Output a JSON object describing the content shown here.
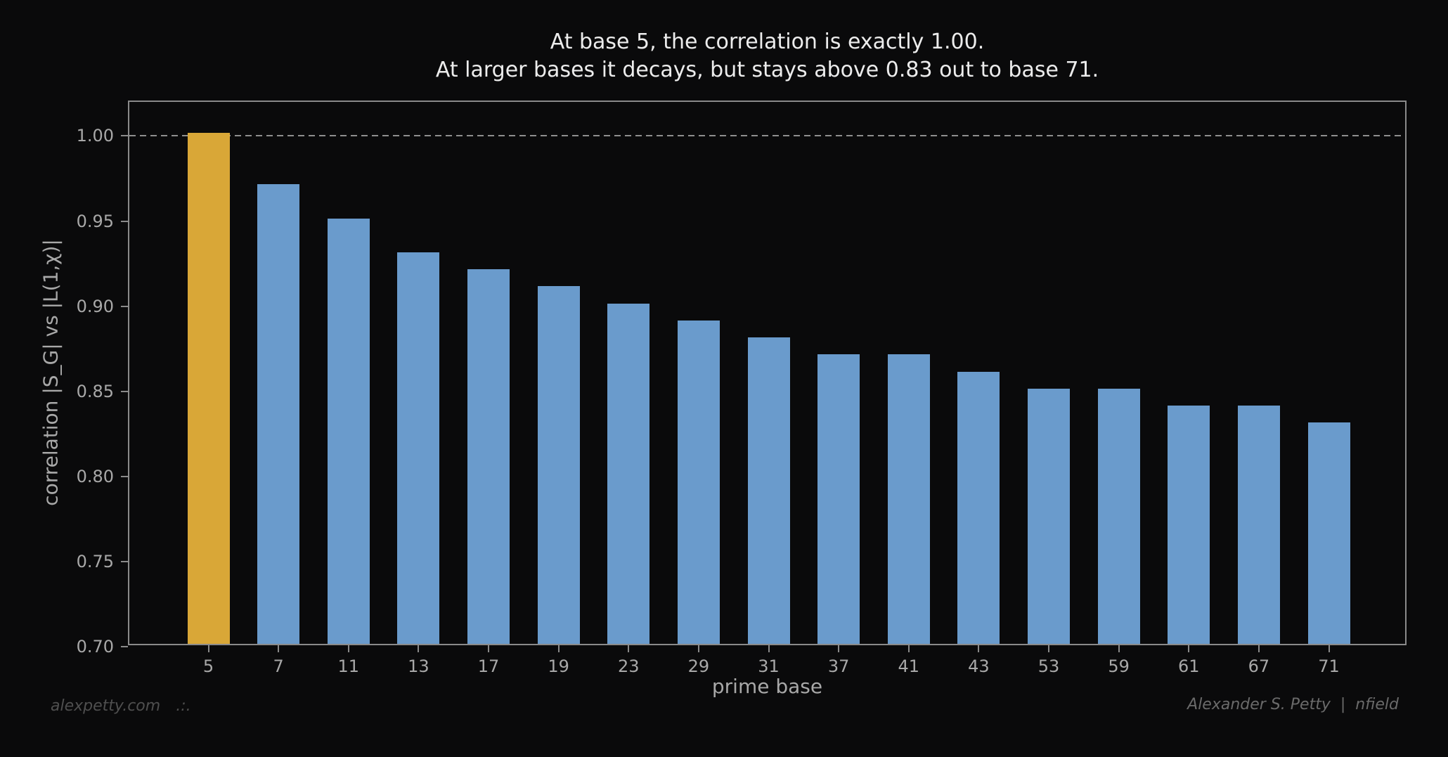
{
  "title": {
    "line1": "At base 5, the correlation is exactly 1.00.",
    "line2": "At larger bases it decays, but stays above 0.83 out to base 71."
  },
  "footer": {
    "left_brand": "alexpetty.com",
    "left_glyph": ".:.",
    "right_credit": "Alexander S. Petty  |  nfield"
  },
  "colors": {
    "background": "#0a0a0b",
    "title_text": "#ececec",
    "tick_text": "#a8a8a8",
    "spine": "#8a8a8a",
    "gridline": "#8f8f8f",
    "footer_left_text": "#4f4f4f",
    "footer_right_text": "#6a6a6a"
  },
  "chart_data": {
    "type": "bar",
    "title": "At base 5, the correlation is exactly 1.00.\nAt larger bases it decays, but stays above 0.83 out to base 71.",
    "xlabel": "prime base",
    "ylabel": "correlation |S_G| vs |L(1,χ)|",
    "categories": [
      "5",
      "7",
      "11",
      "13",
      "17",
      "19",
      "23",
      "29",
      "31",
      "37",
      "41",
      "43",
      "53",
      "59",
      "61",
      "67",
      "71"
    ],
    "values": [
      1.0,
      0.97,
      0.95,
      0.93,
      0.92,
      0.91,
      0.9,
      0.89,
      0.88,
      0.87,
      0.87,
      0.86,
      0.85,
      0.85,
      0.84,
      0.84,
      0.83
    ],
    "ylim": [
      0.7,
      1.02
    ],
    "yticks": [
      "0.70",
      "0.75",
      "0.80",
      "0.85",
      "0.90",
      "0.95",
      "1.00"
    ],
    "grid": "dashed reference line at y=1.00 only",
    "legend": "none",
    "gridline_y": 1.0,
    "bar_color": "#6A9BCC",
    "highlight_color": "#D9A737",
    "highlight_index": 0,
    "highlight_category": "5"
  }
}
